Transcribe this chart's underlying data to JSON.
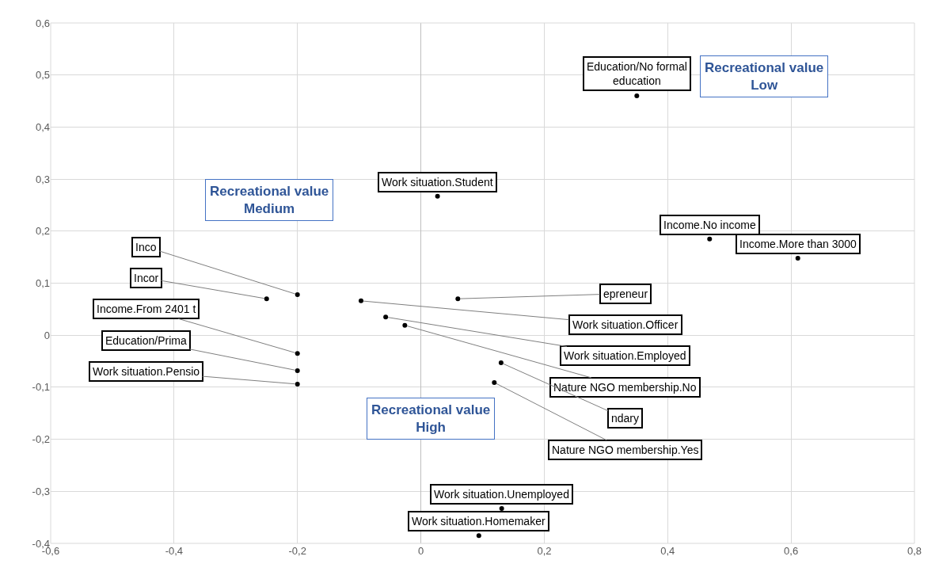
{
  "chart_data": {
    "type": "scatter",
    "marker": "circle",
    "grid": true,
    "xlim": [
      -0.6,
      0.8
    ],
    "xticks": [
      {
        "value": -0.6,
        "label": "-0,6"
      },
      {
        "value": -0.4,
        "label": "-0,4"
      },
      {
        "value": -0.2,
        "label": "-0,2"
      },
      {
        "value": 0,
        "label": "0"
      },
      {
        "value": 0.2,
        "label": "0,2"
      },
      {
        "value": 0.4,
        "label": "0,4"
      },
      {
        "value": 0.6,
        "label": "0,6"
      },
      {
        "value": 0.8,
        "label": "0,8"
      }
    ],
    "ylim": [
      -0.4,
      0.6
    ],
    "yticks": [
      {
        "value": -0.4,
        "label": "-0,4"
      },
      {
        "value": -0.3,
        "label": "-0,3"
      },
      {
        "value": -0.2,
        "label": "-0,2"
      },
      {
        "value": -0.1,
        "label": "-0,1"
      },
      {
        "value": 0,
        "label": "0"
      },
      {
        "value": 0.1,
        "label": "0,1"
      },
      {
        "value": 0.2,
        "label": "0,2"
      },
      {
        "value": 0.3,
        "label": "0,3"
      },
      {
        "value": 0.4,
        "label": "0,4"
      },
      {
        "value": 0.5,
        "label": "0,5"
      },
      {
        "value": 0.6,
        "label": "0,6"
      }
    ],
    "series": [
      {
        "color": "#000000",
        "x": [
          0.35,
          0.027,
          0.468,
          0.611,
          0.131,
          0.094,
          -0.25,
          -0.2,
          -0.097,
          0.06,
          -0.057,
          -0.026,
          -0.2,
          -0.2,
          0.13,
          -0.2,
          0.119
        ],
        "values": [
          0.46,
          0.267,
          0.185,
          0.148,
          -0.333,
          -0.385,
          0.07,
          0.078,
          0.066,
          0.07,
          0.035,
          0.019,
          -0.035,
          -0.068,
          -0.053,
          -0.094,
          -0.091
        ]
      }
    ],
    "annotations": [
      {
        "text": "Education/No formal\neducation",
        "x": 0.35,
        "y": 0.46
      },
      {
        "text": "Work situation.Student",
        "x": 0.027,
        "y": 0.267
      },
      {
        "text": "Income.No income",
        "x": 0.468,
        "y": 0.185
      },
      {
        "text": "Income.More than 3000",
        "x": 0.611,
        "y": 0.148
      },
      {
        "text": "Work situation.Unemployed",
        "x": 0.131,
        "y": -0.333
      },
      {
        "text": "Work situation.Homemaker",
        "x": 0.094,
        "y": -0.385
      },
      {
        "text": "Incor",
        "x": -0.25,
        "y": 0.07
      },
      {
        "text": "Inco",
        "x": -0.2,
        "y": 0.078
      },
      {
        "text": "Work situation.Officer",
        "x": -0.097,
        "y": 0.066
      },
      {
        "text": "epreneur",
        "x": 0.06,
        "y": 0.07
      },
      {
        "text": "Work situation.Employed",
        "x": -0.057,
        "y": 0.035
      },
      {
        "text": "Nature NGO membership.No",
        "x": -0.026,
        "y": 0.019
      },
      {
        "text": "Income.From 2401 t",
        "x": -0.2,
        "y": -0.035
      },
      {
        "text": "Education/Prima",
        "x": -0.2,
        "y": -0.068
      },
      {
        "text": "ndary",
        "x": 0.13,
        "y": -0.053
      },
      {
        "text": "Work situation.Pensio",
        "x": -0.2,
        "y": -0.094
      },
      {
        "text": "Nature NGO membership.Yes",
        "x": 0.119,
        "y": -0.091
      },
      "Recreational value\nMedium",
      "Recreational value\nLow",
      "Recreational value\nHigh"
    ]
  }
}
